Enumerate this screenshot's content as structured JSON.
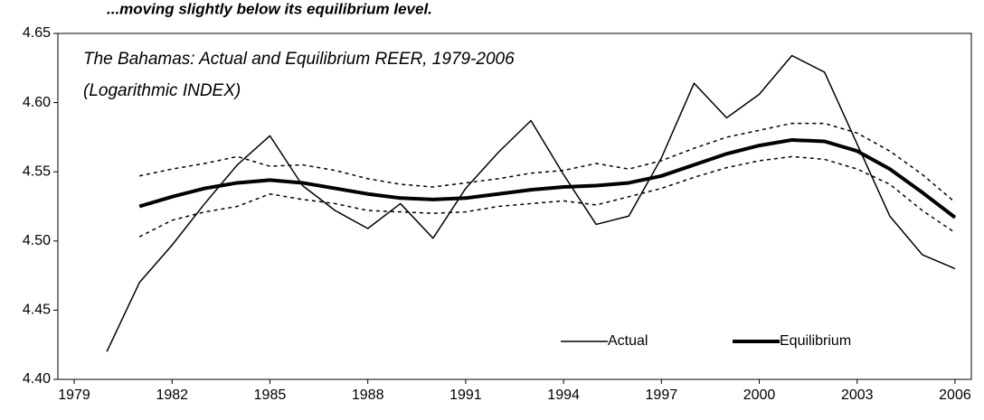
{
  "chart_data": {
    "type": "line",
    "title": "...moving slightly below its equilibrium level.",
    "subtitle": [
      "The Bahamas: Actual and Equilibrium REER, 1979-2006",
      "(Logarithmic INDEX)"
    ],
    "x": [
      1980,
      1981,
      1982,
      1983,
      1984,
      1985,
      1986,
      1987,
      1988,
      1989,
      1990,
      1991,
      1992,
      1993,
      1994,
      1995,
      1996,
      1997,
      1998,
      1999,
      2000,
      2001,
      2002,
      2003,
      2004,
      2005,
      2006
    ],
    "series": [
      {
        "name": "Actual",
        "color": "#000000",
        "width": 1.5,
        "dash": false,
        "values": [
          4.42,
          4.47,
          4.497,
          4.527,
          4.555,
          4.576,
          4.54,
          4.522,
          4.509,
          4.527,
          4.502,
          4.538,
          4.564,
          4.587,
          4.548,
          4.512,
          4.518,
          4.56,
          4.614,
          4.589,
          4.606,
          4.634,
          4.622,
          4.57,
          4.518,
          4.49,
          4.48
        ]
      },
      {
        "name": "Equilibrium",
        "color": "#000000",
        "width": 4,
        "dash": false,
        "values": [
          null,
          4.525,
          4.532,
          4.538,
          4.542,
          4.544,
          4.542,
          4.538,
          4.534,
          4.531,
          4.53,
          4.531,
          4.534,
          4.537,
          4.539,
          4.54,
          4.542,
          4.547,
          4.555,
          4.563,
          4.569,
          4.573,
          4.572,
          4.565,
          4.552,
          4.535,
          4.517
        ]
      },
      {
        "color": "#000000",
        "width": 1.5,
        "dash": true,
        "values": [
          null,
          4.547,
          4.552,
          4.556,
          4.561,
          4.554,
          4.555,
          4.551,
          4.545,
          4.541,
          4.539,
          4.542,
          4.545,
          4.549,
          4.551,
          4.556,
          4.552,
          4.558,
          4.567,
          4.575,
          4.58,
          4.585,
          4.585,
          4.578,
          4.565,
          4.548,
          4.528
        ]
      },
      {
        "color": "#000000",
        "width": 1.5,
        "dash": true,
        "values": [
          null,
          4.503,
          4.515,
          4.521,
          4.525,
          4.534,
          4.53,
          4.527,
          4.522,
          4.521,
          4.52,
          4.521,
          4.525,
          4.527,
          4.529,
          4.526,
          4.532,
          4.538,
          4.546,
          4.553,
          4.558,
          4.561,
          4.559,
          4.552,
          4.541,
          4.522,
          4.506
        ]
      }
    ],
    "xlim": [
      1978.5,
      2006.5
    ],
    "xticks": [
      1979,
      1982,
      1985,
      1988,
      1991,
      1994,
      1997,
      2000,
      2003,
      2006
    ],
    "ylim": [
      4.4,
      4.65
    ],
    "yticks": [
      {
        "value": 4.4,
        "label": "4.40"
      },
      4.45,
      {
        "value": 4.5,
        "label": "4.50"
      },
      4.55,
      {
        "value": 4.6,
        "label": "4.60"
      },
      4.65
    ],
    "grid": false,
    "legend": "lower-right"
  }
}
